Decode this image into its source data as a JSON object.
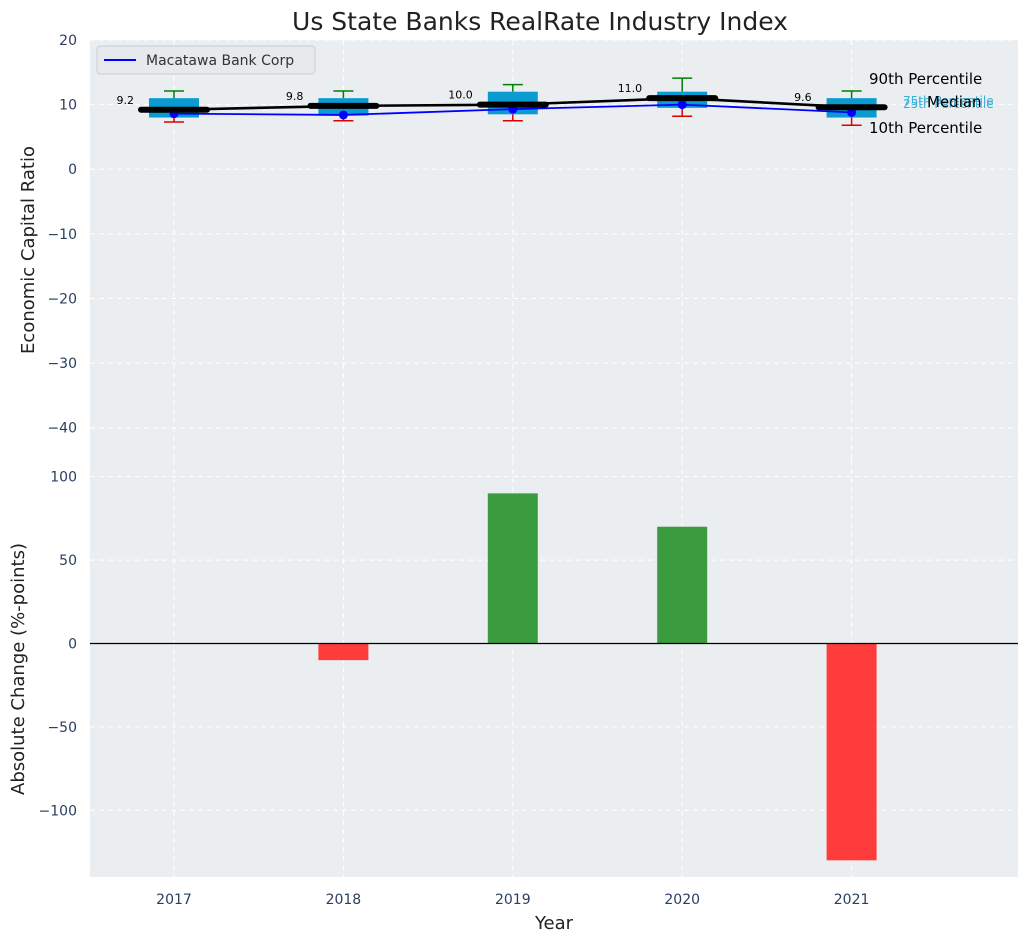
{
  "chart_data": [
    {
      "type": "box",
      "title": "Us State Banks RealRate Industry Index",
      "ylabel": "Economic Capital Ratio",
      "ylim": [
        -45,
        20
      ],
      "yticks": [
        20,
        10,
        0,
        -10,
        -20,
        -30,
        -40
      ],
      "grid": true,
      "categories": [
        "2017",
        "2018",
        "2019",
        "2020",
        "2021"
      ],
      "boxes": [
        {
          "year": "2017",
          "p10": 7.3,
          "p25": 8.0,
          "median": 9.2,
          "p75": 11.0,
          "p90": 12.1
        },
        {
          "year": "2018",
          "p10": 7.5,
          "p25": 8.3,
          "median": 9.8,
          "p75": 11.0,
          "p90": 12.1
        },
        {
          "year": "2019",
          "p10": 7.5,
          "p25": 8.5,
          "median": 10.0,
          "p75": 12.0,
          "p90": 13.1
        },
        {
          "year": "2020",
          "p10": 8.2,
          "p25": 9.5,
          "median": 11.0,
          "p75": 12.0,
          "p90": 14.1
        },
        {
          "year": "2021",
          "p10": 6.8,
          "p25": 8.0,
          "median": 9.6,
          "p75": 11.0,
          "p90": 12.1
        }
      ],
      "median_labels": [
        "9.2",
        "9.8",
        "10.0",
        "11.0",
        "9.6"
      ],
      "series": [
        {
          "name": "Macatawa Bank Corp",
          "values": [
            8.6,
            8.4,
            9.3,
            10.0,
            8.8
          ],
          "color": "#0000ff"
        }
      ],
      "legend_position": "top-left",
      "percentile_labels": {
        "p90": "90th Percentile",
        "p75": "75th Percentile",
        "median": "Median",
        "p25": "25th Percentile",
        "p10": "10th Percentile"
      }
    },
    {
      "type": "bar",
      "categories": [
        "2017",
        "2018",
        "2019",
        "2020",
        "2021"
      ],
      "values": [
        0,
        -10,
        90,
        70,
        -130
      ],
      "xlabel": "Year",
      "ylabel": "Absolute Change (%-points)",
      "ylim": [
        -140,
        110
      ],
      "yticks": [
        100,
        50,
        0,
        -50,
        -100
      ],
      "grid": true
    }
  ],
  "colors": {
    "panel_bg": "#eaeef0",
    "box_fill": "#0a9bd0",
    "median_line": "#000000",
    "whisker_high": "#008000",
    "whisker_low": "#dd0000",
    "bar_positive": "#3a9c3e",
    "bar_negative": "#ff3c3c",
    "tick_text": "#2a3f5f",
    "percentile_text_box": "#3bb0d8"
  }
}
